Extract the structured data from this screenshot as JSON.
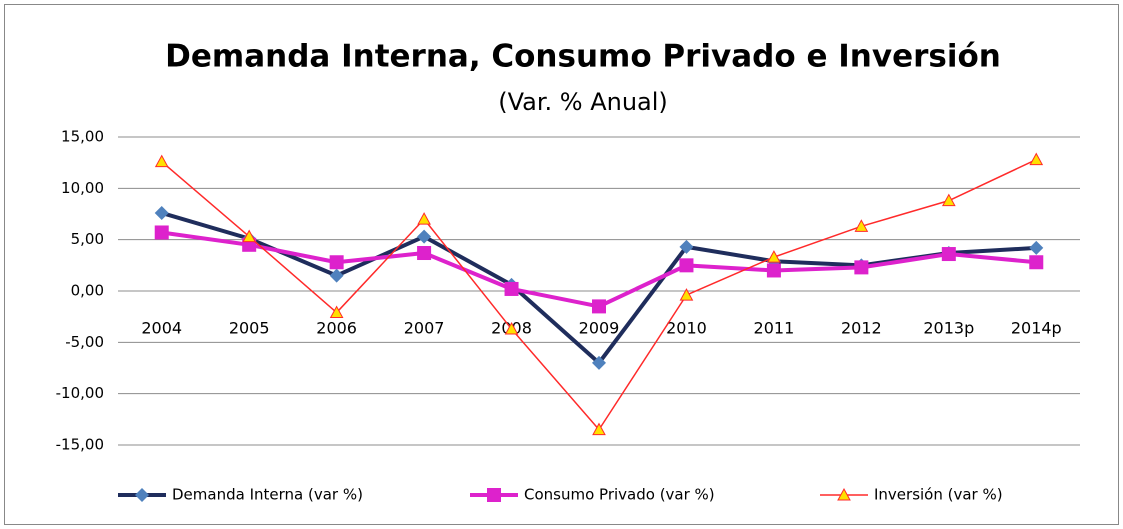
{
  "chart_data": {
    "type": "line",
    "title": "Demanda Interna, Consumo Privado e Inversión",
    "subtitle": "(Var. % Anual)",
    "categories": [
      "2004",
      "2005",
      "2006",
      "2007",
      "2008",
      "2009",
      "2010",
      "2011",
      "2012",
      "2013p",
      "2014p"
    ],
    "series": [
      {
        "name": "Demanda Interna (var %)",
        "color": "#1f2d5c",
        "marker": "diamond",
        "marker_color": "#4f81bd",
        "line_width": 4,
        "values": [
          7.6,
          5.1,
          1.5,
          5.3,
          0.6,
          -7.0,
          4.3,
          2.9,
          2.5,
          3.7,
          4.2
        ]
      },
      {
        "name": "Consumo Privado (var %)",
        "color": "#dd22cc",
        "marker": "square",
        "marker_color": "#dd22cc",
        "line_width": 4,
        "values": [
          5.7,
          4.5,
          2.8,
          3.7,
          0.2,
          -1.5,
          2.5,
          2.0,
          2.3,
          3.6,
          2.8
        ]
      },
      {
        "name": "Inversión (var %)",
        "color": "#ff2a2a",
        "marker": "triangle",
        "marker_color": "#ffe000",
        "line_width": 1.5,
        "values": [
          12.6,
          5.3,
          -2.1,
          7.0,
          -3.7,
          -13.5,
          -0.4,
          3.3,
          6.3,
          8.8,
          12.8
        ]
      }
    ],
    "ylim": [
      -15,
      15
    ],
    "yticks": [
      {
        "value": -15,
        "label": "-15,00"
      },
      {
        "value": -10,
        "label": "-10,00"
      },
      {
        "value": -5,
        "label": "-5,00"
      },
      {
        "value": 0,
        "label": "0,00"
      },
      {
        "value": 5,
        "label": "5,00"
      },
      {
        "value": 10,
        "label": "10,00"
      },
      {
        "value": 15,
        "label": "15,00"
      }
    ],
    "grid": true,
    "legend": "bottom"
  }
}
